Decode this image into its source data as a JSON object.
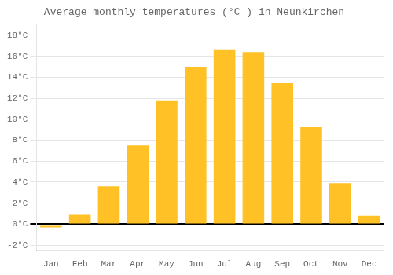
{
  "chart_data": {
    "type": "bar",
    "title": "Average monthly temperatures (°C ) in Neunkirchen",
    "categories": [
      "Jan",
      "Feb",
      "Mar",
      "Apr",
      "May",
      "Jun",
      "Jul",
      "Aug",
      "Sep",
      "Oct",
      "Nov",
      "Dec"
    ],
    "values": [
      -0.3,
      0.9,
      3.6,
      7.5,
      11.8,
      15.0,
      16.6,
      16.4,
      13.5,
      9.3,
      3.9,
      0.8
    ],
    "color": "#FFC125",
    "ylim": [
      -2.5,
      19
    ],
    "yticks": [
      {
        "value": -2,
        "label": "-2°C"
      },
      {
        "value": 0,
        "label": "0°C"
      },
      {
        "value": 2,
        "label": "2°C"
      },
      {
        "value": 4,
        "label": "4°C"
      },
      {
        "value": 6,
        "label": "6°C"
      },
      {
        "value": 8,
        "label": "8°C"
      },
      {
        "value": 10,
        "label": "10°C"
      },
      {
        "value": 12,
        "label": "12°C"
      },
      {
        "value": 14,
        "label": "14°C"
      },
      {
        "value": 16,
        "label": "16°C"
      },
      {
        "value": 18,
        "label": "18°C"
      }
    ],
    "grid": true
  }
}
